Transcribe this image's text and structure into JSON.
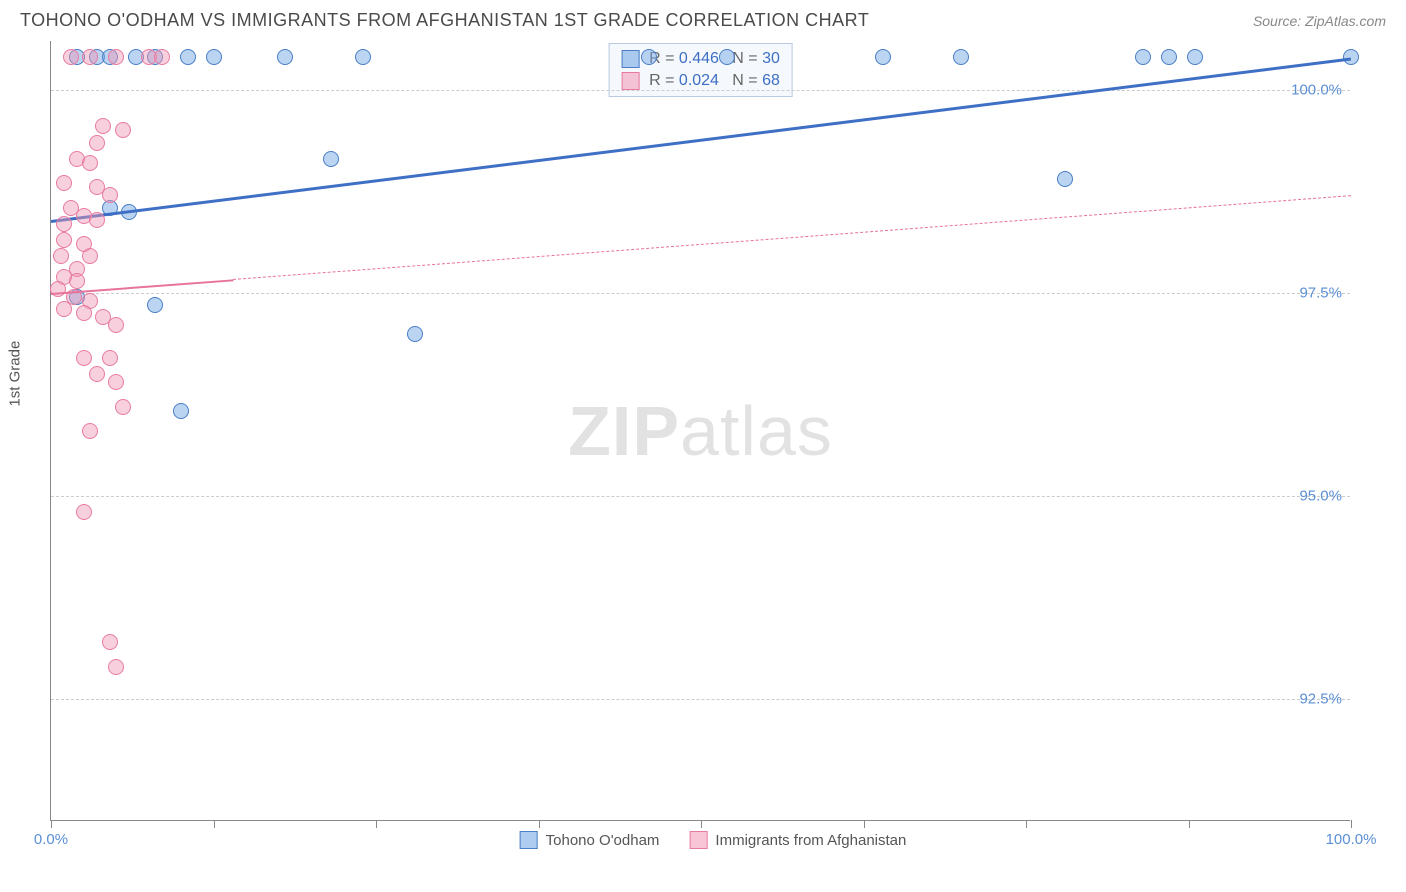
{
  "header": {
    "title": "TOHONO O'ODHAM VS IMMIGRANTS FROM AFGHANISTAN 1ST GRADE CORRELATION CHART",
    "source": "Source: ZipAtlas.com"
  },
  "chart": {
    "type": "scatter",
    "y_label": "1st Grade",
    "watermark": "ZIPatlas",
    "background_color": "#ffffff",
    "grid_color": "#cccccc",
    "axis_color": "#888888",
    "label_color": "#5b8fd4",
    "xlim": [
      0,
      100
    ],
    "ylim": [
      91.0,
      100.6
    ],
    "y_ticks": [
      {
        "value": 100.0,
        "label": "100.0%"
      },
      {
        "value": 97.5,
        "label": "97.5%"
      },
      {
        "value": 95.0,
        "label": "95.0%"
      },
      {
        "value": 92.5,
        "label": "92.5%"
      }
    ],
    "x_ticks": [
      {
        "value": 0.0,
        "label": "0.0%"
      },
      {
        "value": 12.5,
        "label": ""
      },
      {
        "value": 25.0,
        "label": ""
      },
      {
        "value": 37.5,
        "label": ""
      },
      {
        "value": 50.0,
        "label": ""
      },
      {
        "value": 62.5,
        "label": ""
      },
      {
        "value": 75.0,
        "label": ""
      },
      {
        "value": 87.5,
        "label": ""
      },
      {
        "value": 100.0,
        "label": "100.0%"
      }
    ],
    "series": [
      {
        "name": "Tohono O'odham",
        "color_fill": "rgba(120,170,230,0.5)",
        "color_stroke": "#4a7ec7",
        "trend_color": "#3d6fc4",
        "R": "0.446",
        "N": "30",
        "trend": {
          "x0": 0,
          "y0": 98.4,
          "x1": 100,
          "y1": 100.4,
          "solid_until": 100
        },
        "points": [
          [
            2.0,
            100.4
          ],
          [
            3.5,
            100.4
          ],
          [
            4.5,
            100.4
          ],
          [
            6.5,
            100.4
          ],
          [
            8.0,
            100.4
          ],
          [
            10.5,
            100.4
          ],
          [
            12.5,
            100.4
          ],
          [
            18.0,
            100.4
          ],
          [
            24.0,
            100.4
          ],
          [
            46.0,
            100.4
          ],
          [
            52.0,
            100.4
          ],
          [
            64.0,
            100.4
          ],
          [
            70.0,
            100.4
          ],
          [
            84.0,
            100.4
          ],
          [
            86.0,
            100.4
          ],
          [
            88.0,
            100.4
          ],
          [
            100.0,
            100.4
          ],
          [
            21.5,
            99.15
          ],
          [
            78.0,
            98.9
          ],
          [
            4.5,
            98.55
          ],
          [
            6.0,
            98.5
          ],
          [
            2.0,
            97.45
          ],
          [
            8.0,
            97.35
          ],
          [
            28.0,
            97.0
          ],
          [
            10.0,
            96.05
          ]
        ]
      },
      {
        "name": "Immigrants from Afghanistan",
        "color_fill": "rgba(240,150,180,0.45)",
        "color_stroke": "#e87ba0",
        "trend_color": "#e87398",
        "R": "0.024",
        "N": "68",
        "trend": {
          "x0": 0,
          "y0": 97.5,
          "x1": 100,
          "y1": 98.7,
          "solid_until": 14
        },
        "points": [
          [
            1.5,
            100.4
          ],
          [
            3.0,
            100.4
          ],
          [
            5.0,
            100.4
          ],
          [
            7.5,
            100.4
          ],
          [
            8.5,
            100.4
          ],
          [
            4.0,
            99.55
          ],
          [
            5.5,
            99.5
          ],
          [
            3.5,
            99.35
          ],
          [
            2.0,
            99.15
          ],
          [
            3.0,
            99.1
          ],
          [
            1.0,
            98.85
          ],
          [
            3.5,
            98.8
          ],
          [
            4.5,
            98.7
          ],
          [
            1.5,
            98.55
          ],
          [
            1.0,
            98.35
          ],
          [
            2.5,
            98.45
          ],
          [
            3.5,
            98.4
          ],
          [
            1.0,
            98.15
          ],
          [
            2.5,
            98.1
          ],
          [
            0.8,
            97.95
          ],
          [
            3.0,
            97.95
          ],
          [
            2.0,
            97.8
          ],
          [
            1.0,
            97.7
          ],
          [
            2.0,
            97.65
          ],
          [
            0.5,
            97.55
          ],
          [
            1.8,
            97.45
          ],
          [
            3.0,
            97.4
          ],
          [
            1.0,
            97.3
          ],
          [
            2.5,
            97.25
          ],
          [
            4.0,
            97.2
          ],
          [
            5.0,
            97.1
          ],
          [
            2.5,
            96.7
          ],
          [
            4.5,
            96.7
          ],
          [
            3.5,
            96.5
          ],
          [
            5.0,
            96.4
          ],
          [
            5.5,
            96.1
          ],
          [
            3.0,
            95.8
          ],
          [
            2.5,
            94.8
          ],
          [
            4.5,
            93.2
          ],
          [
            5.0,
            92.9
          ]
        ]
      }
    ],
    "bottom_legend": [
      {
        "swatch": "blue",
        "label": "Tohono O'odham"
      },
      {
        "swatch": "pink",
        "label": "Immigrants from Afghanistan"
      }
    ]
  }
}
